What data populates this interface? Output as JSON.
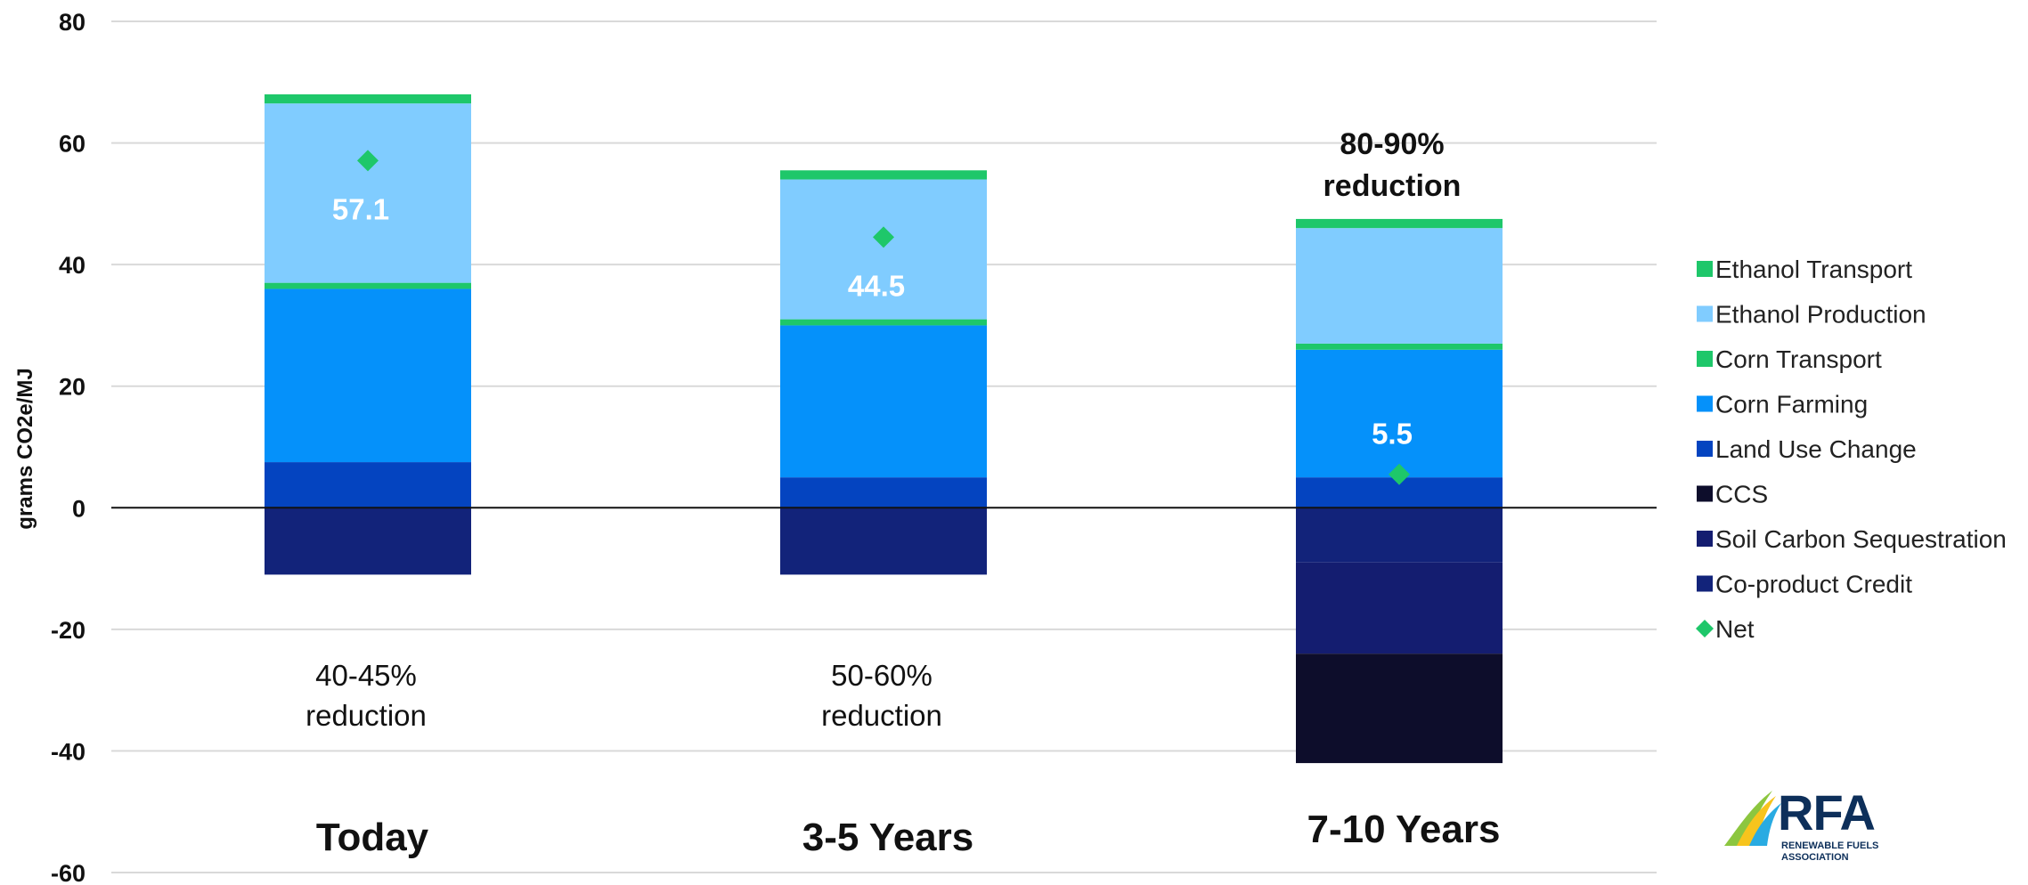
{
  "chart_data": {
    "type": "bar",
    "stacked": true,
    "title": "",
    "ylabel": "grams CO2e/MJ",
    "xlabel": "",
    "ylim": [
      -60,
      80
    ],
    "yticks": [
      -60,
      -40,
      -20,
      0,
      20,
      40,
      60,
      80
    ],
    "grid": true,
    "legend_position": "right",
    "categories": [
      "Today",
      "3-5 Years",
      "7-10 Years"
    ],
    "series": [
      {
        "name": "Ethanol Transport",
        "color": "#1ec76a",
        "values": [
          1.5,
          1.5,
          1.5
        ]
      },
      {
        "name": "Ethanol Production",
        "color": "#80ccff",
        "values": [
          29.5,
          23,
          19
        ]
      },
      {
        "name": "Corn Transport",
        "color": "#1ec76a",
        "values": [
          1,
          1,
          1
        ]
      },
      {
        "name": "Corn Farming",
        "color": "#0591fa",
        "values": [
          28.5,
          25,
          21
        ]
      },
      {
        "name": "Land Use Change",
        "color": "#0444c0",
        "values": [
          7.5,
          5,
          5
        ]
      },
      {
        "name": "CCS",
        "color": "#0d0d2b",
        "values": [
          0,
          0,
          -18
        ]
      },
      {
        "name": "Soil Carbon Sequestration",
        "color": "#141d70",
        "values": [
          0,
          0,
          -15
        ]
      },
      {
        "name": "Co-product Credit",
        "color": "#12237a",
        "values": [
          -11,
          -11,
          -9
        ]
      }
    ],
    "net": {
      "name": "Net",
      "color": "#1ec76a",
      "values": [
        57.1,
        44.5,
        5.5
      ]
    },
    "data_labels": [
      "57.1",
      "44.5",
      "5.5"
    ],
    "reduction_notes": [
      {
        "line1": "40-45%",
        "line2": "reduction",
        "bold": false
      },
      {
        "line1": "50-60%",
        "line2": "reduction",
        "bold": false
      },
      {
        "line1": "80-90%",
        "line2": "reduction",
        "bold": true
      }
    ]
  },
  "logo": {
    "text": "RFA",
    "subtext": "RENEWABLE FUELS ASSOCIATION"
  }
}
